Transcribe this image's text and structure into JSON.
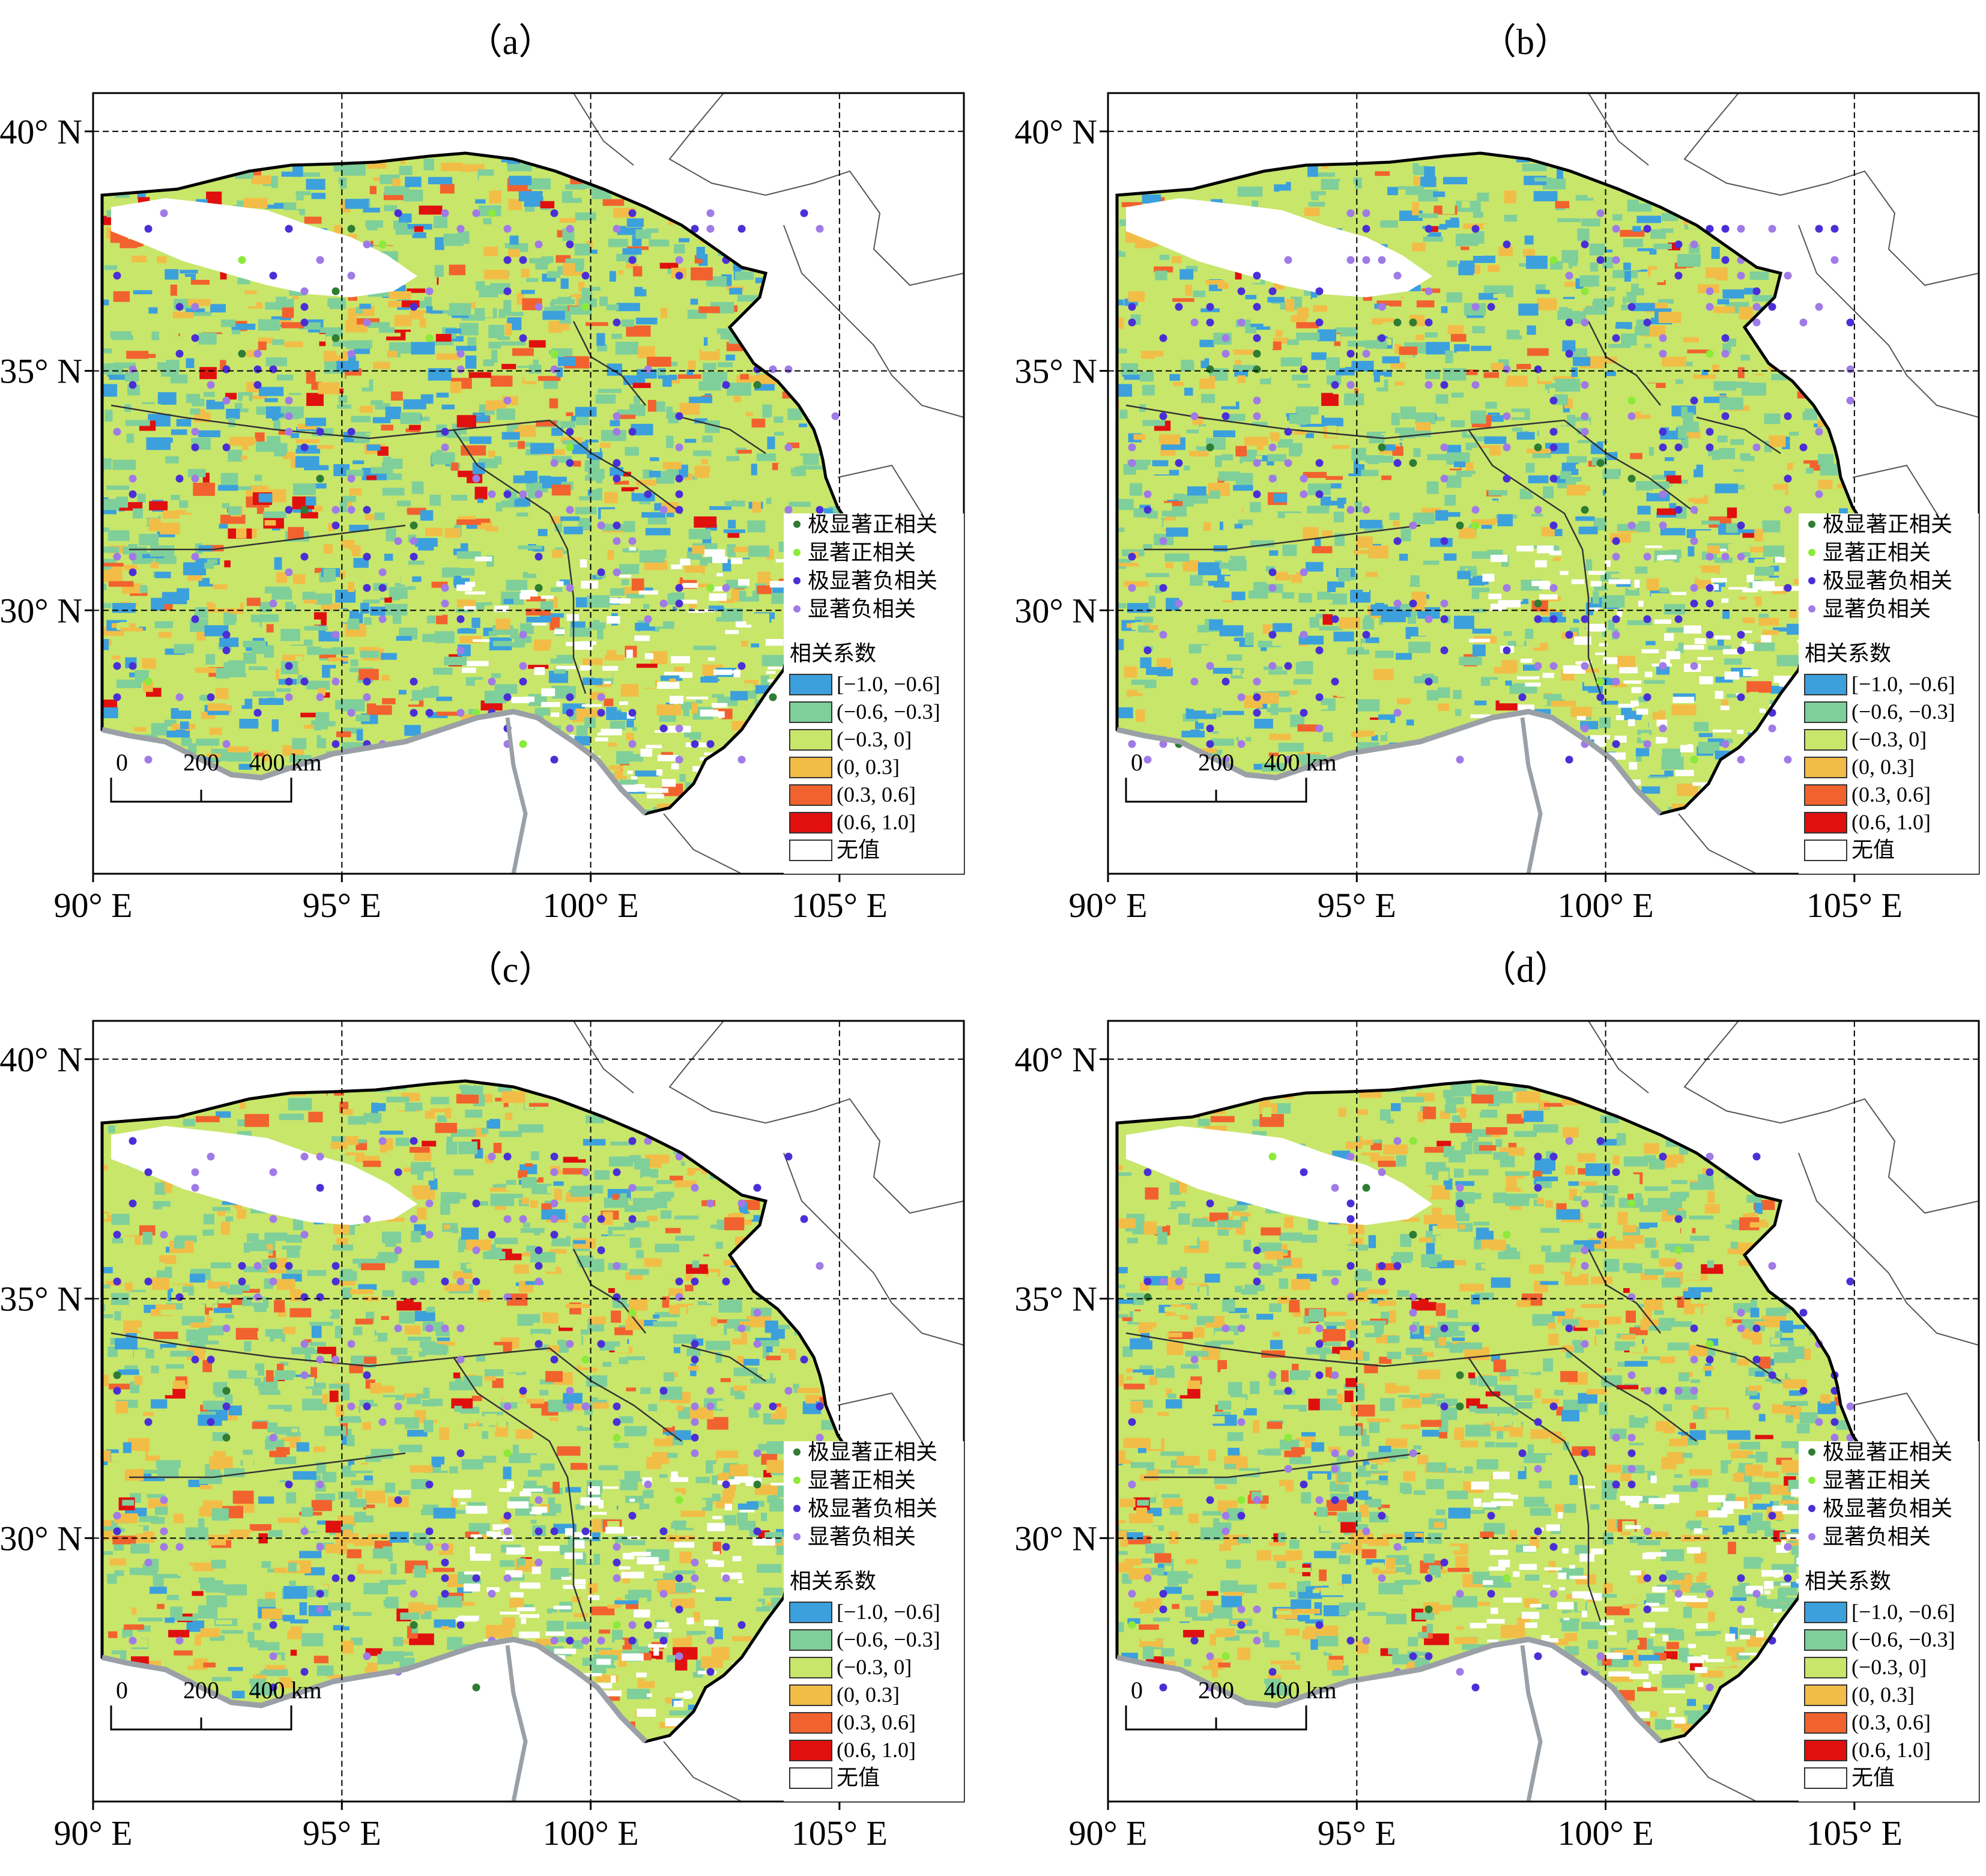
{
  "panels": [
    {
      "id": "a",
      "label": "（a）"
    },
    {
      "id": "b",
      "label": "（b）"
    },
    {
      "id": "c",
      "label": "（c）"
    },
    {
      "id": "d",
      "label": "（d）"
    }
  ],
  "axes": {
    "lat_ticks": [
      "40° N",
      "35° N",
      "30° N"
    ],
    "lon_ticks": [
      "90° E",
      "95° E",
      "100° E",
      "105° E"
    ],
    "lon_range": [
      90,
      107.5
    ],
    "lat_range": [
      24.5,
      40.8
    ]
  },
  "legend": {
    "significance": [
      {
        "label": "极显著正相关",
        "color": "#2e7d32"
      },
      {
        "label": "显著正相关",
        "color": "#8bea3a"
      },
      {
        "label": "极显著负相关",
        "color": "#4b2fd6"
      },
      {
        "label": "显著负相关",
        "color": "#a07ae6"
      }
    ],
    "title": "相关系数",
    "classes": [
      {
        "label": "[−1.0, −0.6]",
        "color": "#3ca0dc"
      },
      {
        "label": "(−0.6, −0.3]",
        "color": "#7fcf9a"
      },
      {
        "label": "(−0.3, 0]",
        "color": "#c8e66a"
      },
      {
        "label": "(0, 0.3]",
        "color": "#f2bd47"
      },
      {
        "label": "(0.3, 0.6]",
        "color": "#f2622e"
      },
      {
        "label": "(0.6, 1.0]",
        "color": "#e0100f"
      },
      {
        "label": "无值",
        "color": "#ffffff"
      }
    ]
  },
  "scalebar": {
    "labels": [
      "0",
      "200",
      "400 km"
    ]
  },
  "colors": {
    "accent_border": "#000000",
    "river_grey": "#9aa0a6"
  }
}
